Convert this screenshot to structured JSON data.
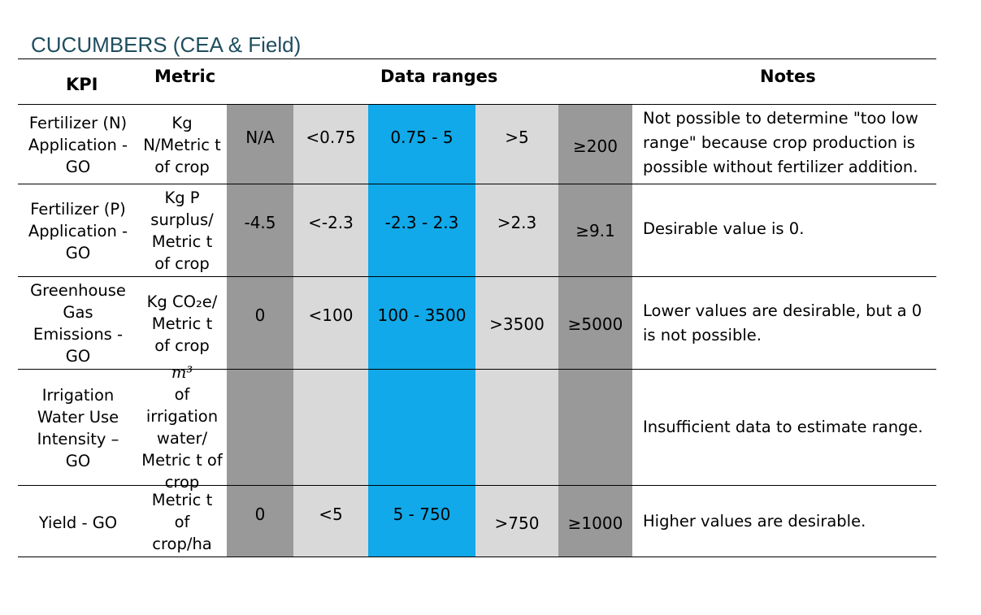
{
  "title": "CUCUMBERS (CEA & Field)",
  "headers": {
    "kpi": "KPI",
    "metric": "Metric",
    "data_ranges": "Data ranges",
    "notes": "Notes"
  },
  "colors": {
    "dark_grey": "#999999",
    "light_grey": "#d9d9d9",
    "blue": "#11a9e9",
    "title": "#1f4e5f"
  },
  "rows": [
    {
      "kpi": "Fertilizer (N) Application - GO",
      "metric": "Kg N/Metric t of crop",
      "ranges": [
        "N/A",
        "<0.75",
        "0.75 - 5",
        ">5",
        "≥200"
      ],
      "note": "Not possible to determine \"too low range\" because crop production is possible without fertilizer addition."
    },
    {
      "kpi": "Fertilizer (P) Application - GO",
      "metric": "Kg P surplus/ Metric t of crop",
      "ranges": [
        "-4.5",
        "<-2.3",
        "-2.3 - 2.3",
        ">2.3",
        "≥9.1"
      ],
      "note": "Desirable value is 0."
    },
    {
      "kpi": "Greenhouse Gas Emissions - GO",
      "metric": "Kg CO₂e/ Metric t of crop",
      "ranges": [
        "0",
        "<100",
        "100 - 3500",
        ">3500",
        "≥5000"
      ],
      "note": "Lower values are desirable, but a 0 is not possible."
    },
    {
      "kpi": "Irrigation Water Use Intensity – GO",
      "metric_prefix": "m³",
      "metric": "of irrigation water/ Metric t of crop",
      "ranges": [
        "",
        "",
        "",
        "",
        ""
      ],
      "note": "Insufficient data to estimate range."
    },
    {
      "kpi": "Yield - GO",
      "metric": "Metric t of crop/ha",
      "ranges": [
        "0",
        "<5",
        "5 - 750",
        ">750",
        "≥1000"
      ],
      "note": "Higher values are desirable."
    }
  ]
}
